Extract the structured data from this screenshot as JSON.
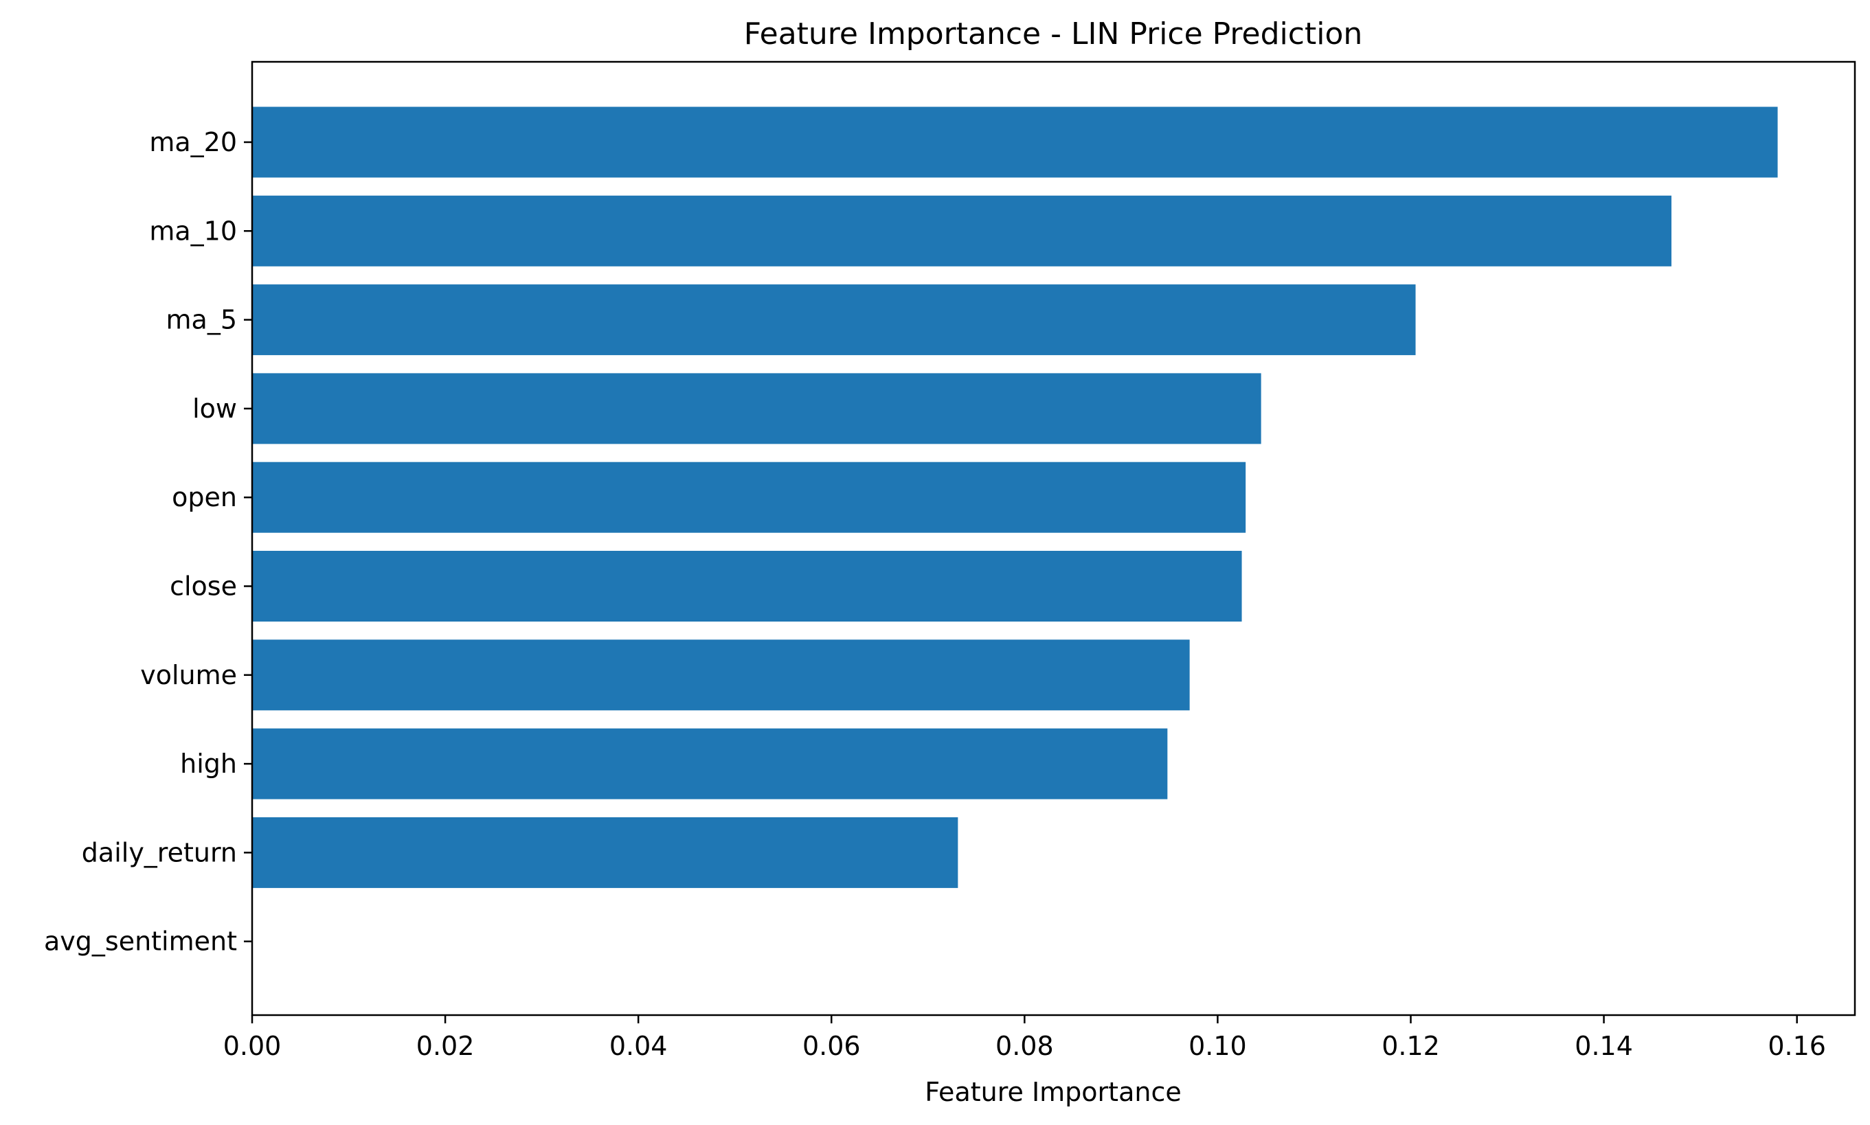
{
  "chart_data": {
    "type": "bar",
    "orientation": "horizontal",
    "title": "Feature Importance - LIN Price Prediction",
    "xlabel": "Feature Importance",
    "ylabel": "",
    "categories": [
      "ma_20",
      "ma_10",
      "ma_5",
      "low",
      "open",
      "close",
      "volume",
      "high",
      "daily_return",
      "avg_sentiment"
    ],
    "values": [
      0.158,
      0.147,
      0.1205,
      0.1045,
      0.1029,
      0.1025,
      0.0971,
      0.0948,
      0.0731,
      0.0
    ],
    "xlim": [
      0.0,
      0.166
    ],
    "xticks": [
      0.0,
      0.02,
      0.04,
      0.06,
      0.08,
      0.1,
      0.12,
      0.14,
      0.16
    ],
    "xtick_labels": [
      "0.00",
      "0.02",
      "0.04",
      "0.06",
      "0.08",
      "0.10",
      "0.12",
      "0.14",
      "0.16"
    ],
    "bar_color": "#1f77b4",
    "grid": false,
    "legend": "none"
  }
}
